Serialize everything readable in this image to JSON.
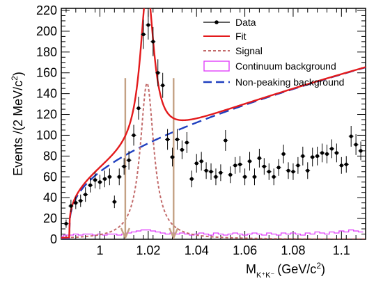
{
  "chart_data": {
    "type": "line",
    "title": "",
    "xlabel_main": "M",
    "xlabel_sub": "K⁺K⁻",
    "xlabel_unit": "(GeV/c",
    "xlabel_sup": "2",
    "xlabel_close": ")",
    "ylabel_main": "Events /(2 MeV/c",
    "ylabel_sup": "2",
    "ylabel_close": ")",
    "xlim": [
      0.984,
      1.11
    ],
    "ylim": [
      0,
      222
    ],
    "x_ticks": [
      1.0,
      1.02,
      1.04,
      1.06,
      1.08,
      1.1
    ],
    "x_tick_labels": [
      "1",
      "1.02",
      "1.04",
      "1.06",
      "1.08",
      "1.1"
    ],
    "y_ticks": [
      0,
      20,
      40,
      60,
      80,
      100,
      120,
      140,
      160,
      180,
      200,
      220
    ],
    "y_tick_labels": [
      "0",
      "20",
      "40",
      "60",
      "80",
      "100",
      "120",
      "140",
      "160",
      "180",
      "200",
      "220"
    ],
    "legend_position": "top-right",
    "legend": [
      {
        "label": "Data",
        "style": "marker",
        "color": "#000000"
      },
      {
        "label": "Fit",
        "style": "solid",
        "color": "#e31a1c"
      },
      {
        "label": "Signal",
        "style": "dotted",
        "color": "#c26a6a"
      },
      {
        "label": "Continuum background",
        "style": "box",
        "color": "#e040fb"
      },
      {
        "label": "Non-peaking background",
        "style": "dashed",
        "color": "#1f3fbf"
      }
    ],
    "data_points": {
      "x": [
        0.986,
        0.988,
        0.99,
        0.992,
        0.994,
        0.996,
        0.998,
        1.0,
        1.002,
        1.004,
        1.006,
        1.008,
        1.01,
        1.012,
        1.014,
        1.016,
        1.018,
        1.02,
        1.022,
        1.024,
        1.026,
        1.028,
        1.03,
        1.032,
        1.034,
        1.036,
        1.038,
        1.04,
        1.042,
        1.044,
        1.046,
        1.048,
        1.05,
        1.052,
        1.054,
        1.056,
        1.058,
        1.06,
        1.062,
        1.064,
        1.066,
        1.068,
        1.07,
        1.072,
        1.074,
        1.076,
        1.078,
        1.08,
        1.082,
        1.084,
        1.086,
        1.088,
        1.09,
        1.092,
        1.094,
        1.096,
        1.098,
        1.1,
        1.102,
        1.104,
        1.106,
        1.108
      ],
      "y": [
        15,
        32,
        35,
        37,
        43,
        52,
        57,
        55,
        58,
        60,
        36,
        60,
        70,
        76,
        100,
        126,
        197,
        206,
        190,
        160,
        148,
        96,
        79,
        96,
        86,
        93,
        58,
        73,
        75,
        66,
        65,
        60,
        64,
        95,
        62,
        71,
        72,
        60,
        75,
        60,
        78,
        70,
        65,
        60,
        69,
        82,
        66,
        65,
        71,
        80,
        66,
        79,
        80,
        83,
        82,
        87,
        83,
        71,
        72,
        99,
        91,
        85
      ],
      "err": [
        4,
        6,
        6,
        6,
        7,
        7,
        8,
        7,
        8,
        8,
        6,
        8,
        8,
        9,
        10,
        11,
        14,
        14,
        14,
        13,
        12,
        10,
        9,
        10,
        9,
        10,
        8,
        9,
        9,
        8,
        8,
        8,
        8,
        10,
        8,
        8,
        8,
        8,
        9,
        8,
        9,
        8,
        8,
        8,
        8,
        9,
        8,
        8,
        8,
        9,
        8,
        9,
        9,
        9,
        9,
        9,
        9,
        8,
        8,
        10,
        10,
        9
      ]
    },
    "continuum": {
      "x": [
        0.984,
        0.986,
        0.988,
        0.99,
        0.992,
        0.994,
        0.996,
        0.998,
        1.0,
        1.002,
        1.004,
        1.006,
        1.008,
        1.01,
        1.012,
        1.014,
        1.016,
        1.018,
        1.02,
        1.022,
        1.024,
        1.026,
        1.028,
        1.03,
        1.032,
        1.034,
        1.036,
        1.038,
        1.04,
        1.042,
        1.044,
        1.046,
        1.048,
        1.05,
        1.052,
        1.054,
        1.056,
        1.058,
        1.06,
        1.062,
        1.064,
        1.066,
        1.068,
        1.07,
        1.072,
        1.074,
        1.076,
        1.078,
        1.08,
        1.082,
        1.084,
        1.086,
        1.088,
        1.09,
        1.092,
        1.094,
        1.096,
        1.098,
        1.1,
        1.102,
        1.104,
        1.106,
        1.108
      ],
      "y": [
        3,
        4,
        4,
        5,
        4,
        5,
        5,
        4,
        5,
        4,
        5,
        5,
        4,
        5,
        6,
        7,
        8,
        9,
        9,
        8,
        7,
        6,
        5,
        6,
        5,
        6,
        5,
        4,
        5,
        6,
        5,
        4,
        6,
        5,
        4,
        5,
        6,
        5,
        4,
        5,
        6,
        5,
        4,
        6,
        5,
        4,
        6,
        5,
        6,
        5,
        4,
        6,
        5,
        7,
        6,
        5,
        7,
        6,
        8,
        7,
        9,
        8,
        7
      ]
    },
    "arrows": {
      "x": [
        1.0105,
        1.0305
      ],
      "y_top": 155,
      "y_bottom": 0,
      "color": "#c4a184"
    },
    "fit_params": {
      "bg_base": 5,
      "bg_amp": 24,
      "bg_slope": 1.4,
      "threshold": 0.98735,
      "signal_mass": 1.0195,
      "signal_gamma": 0.0068,
      "signal_peak": 150
    },
    "colors": {
      "fit": "#e31a1c",
      "signal": "#c26a6a",
      "continuum": "#e040fb",
      "nonpeaking": "#1f3fbf",
      "data": "#000000"
    },
    "grid": false
  }
}
